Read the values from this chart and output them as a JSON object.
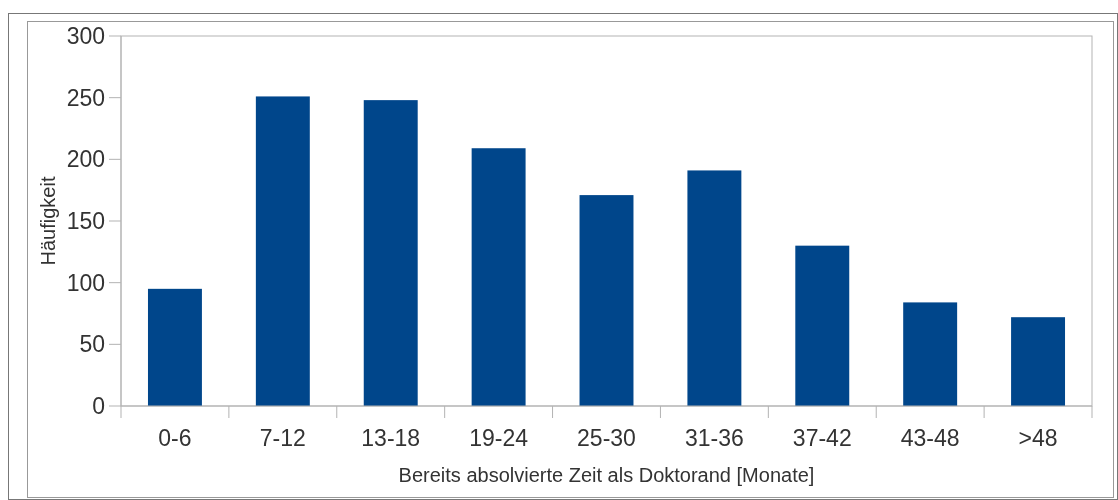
{
  "chart_data": {
    "type": "bar",
    "xlabel": "Bereits absolvierte Zeit als Doktorand [Monate]",
    "ylabel": "Häufigkeit",
    "categories": [
      "0-6",
      "7-12",
      "13-18",
      "19-24",
      "25-30",
      "31-36",
      "37-42",
      "43-48",
      ">48"
    ],
    "values": [
      95,
      251,
      248,
      209,
      171,
      191,
      130,
      84,
      72
    ],
    "color": "#00468b",
    "ylim": [
      0,
      300
    ],
    "yticks": [
      0,
      50,
      100,
      150,
      200,
      250,
      300
    ],
    "grid": false
  }
}
